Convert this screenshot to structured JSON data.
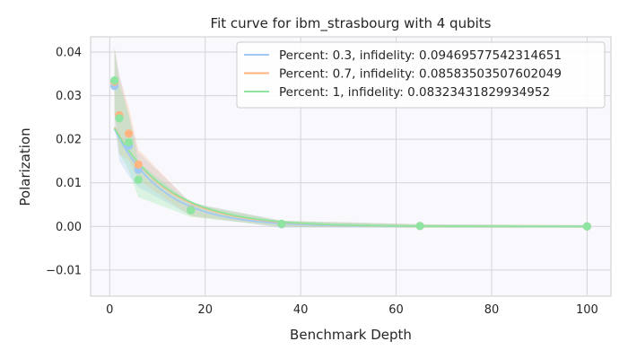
{
  "chart_data": {
    "type": "line",
    "title": "Fit curve for ibm_strasbourg with 4 qubits",
    "xlabel": "Benchmark Depth",
    "ylabel": "Polarization",
    "xlim": [
      -4,
      105
    ],
    "ylim": [
      -0.016,
      0.0435
    ],
    "x_ticks": [
      0,
      20,
      40,
      60,
      80,
      100
    ],
    "x_tick_labels": [
      "0",
      "20",
      "40",
      "60",
      "80",
      "100"
    ],
    "y_ticks": [
      -0.01,
      0.0,
      0.01,
      0.02,
      0.03,
      0.04
    ],
    "y_tick_labels": [
      "−0.01",
      "0.00",
      "0.01",
      "0.02",
      "0.03",
      "0.04"
    ],
    "grid": true,
    "legend_position": "top-right",
    "x": [
      1,
      2,
      4,
      6,
      17,
      36,
      65,
      100
    ],
    "series": [
      {
        "name": "Percent: 0.3, infidelity: 0.09469577542314651",
        "color": "#a1c9f4",
        "points": [
          0.0322,
          0.025,
          0.0185,
          0.013,
          0.004,
          0.0005,
          0.0001,
          0.0
        ],
        "errors": [
          0.009,
          0.01,
          0.007,
          0.004,
          0.0015,
          0.0008,
          0.0004,
          0.0003
        ],
        "fit": {
          "a": 0.0247,
          "infidelity": 0.09469577542314651
        }
      },
      {
        "name": "Percent: 0.7, infidelity: 0.08583503507602049",
        "color": "#ffb482",
        "points": [
          0.0332,
          0.0255,
          0.0213,
          0.0142,
          0.0038,
          0.0006,
          0.0001,
          0.0
        ],
        "errors": [
          0.008,
          0.009,
          0.006,
          0.0035,
          0.0015,
          0.0007,
          0.0004,
          0.0003
        ],
        "fit": {
          "a": 0.0249,
          "infidelity": 0.08583503507602049
        }
      },
      {
        "name": "Percent: 1, infidelity: 0.08323431829934952",
        "color": "#8de5a1",
        "points": [
          0.0335,
          0.0248,
          0.0193,
          0.0107,
          0.0037,
          0.0006,
          0.0001,
          0.0
        ],
        "errors": [
          0.007,
          0.008,
          0.0065,
          0.004,
          0.0015,
          0.0007,
          0.0004,
          0.0003
        ],
        "fit": {
          "a": 0.0246,
          "infidelity": 0.08323431829934952
        }
      }
    ]
  }
}
